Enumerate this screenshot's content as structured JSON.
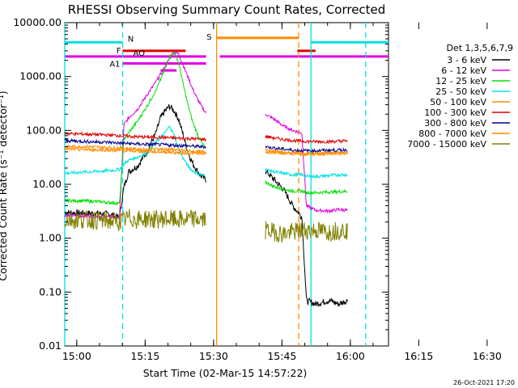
{
  "chart_data": {
    "type": "line",
    "title": "RHESSI Observing Summary Count Rates, Corrected",
    "xlabel": "Start Time (02-Mar-15 14:57:22)",
    "ylabel": "Corrected Count Rate (s⁻¹ detector⁻¹)",
    "yscale": "log",
    "ylim": [
      0.01,
      10000
    ],
    "xlim_minutes": [
      0,
      71
    ],
    "x_tick_labels": [
      "15:00",
      "15:15",
      "15:30",
      "15:45",
      "16:00",
      "16:15",
      "16:30"
    ],
    "y_tick_labels": [
      "10000.00",
      "1000.00",
      "100.00",
      "10.00",
      "1.00",
      "0.10",
      "0.01"
    ],
    "legend_title": "Det 1,3,5,6,7,9",
    "legend_position": "right",
    "timestamp": "26-Oct-2021 17:20",
    "series": [
      {
        "name": "3 - 6 keV",
        "color": "#000000",
        "seg1": [
          [
            0,
            3.0
          ],
          [
            5,
            2.9
          ],
          [
            10,
            2.8
          ],
          [
            12,
            2.4
          ],
          [
            13,
            9
          ],
          [
            14,
            17
          ],
          [
            16,
            22
          ],
          [
            18,
            40
          ],
          [
            20,
            90
          ],
          [
            21,
            170
          ],
          [
            22,
            230
          ],
          [
            23,
            280
          ],
          [
            24,
            230
          ],
          [
            25,
            160
          ],
          [
            26,
            80
          ],
          [
            27,
            40
          ],
          [
            28,
            25
          ],
          [
            29,
            18
          ],
          [
            30,
            14
          ],
          [
            31,
            12
          ]
        ],
        "seg2": [
          [
            44,
            18
          ],
          [
            46,
            12
          ],
          [
            48,
            8
          ],
          [
            50,
            4
          ],
          [
            52,
            2.5
          ],
          [
            53,
            0.07
          ],
          [
            55,
            0.06
          ],
          [
            58,
            0.07
          ],
          [
            60,
            0.06
          ],
          [
            62,
            0.07
          ]
        ]
      },
      {
        "name": "6 - 12 keV",
        "color": "#e000e0",
        "seg1": [
          [
            0,
            2.6
          ],
          [
            5,
            2.6
          ],
          [
            10,
            2.5
          ],
          [
            12,
            2.4
          ],
          [
            13,
            130
          ],
          [
            14,
            170
          ],
          [
            16,
            250
          ],
          [
            18,
            450
          ],
          [
            20,
            800
          ],
          [
            22,
            1500
          ],
          [
            23,
            2200
          ],
          [
            24,
            2900
          ],
          [
            25,
            2600
          ],
          [
            26,
            1600
          ],
          [
            27,
            1000
          ],
          [
            28,
            600
          ],
          [
            29,
            400
          ],
          [
            30,
            280
          ],
          [
            31,
            210
          ]
        ],
        "seg2": [
          [
            44,
            200
          ],
          [
            46,
            160
          ],
          [
            48,
            120
          ],
          [
            50,
            100
          ],
          [
            52,
            90
          ],
          [
            53,
            4
          ],
          [
            55,
            3.3
          ],
          [
            58,
            3.2
          ],
          [
            60,
            3.4
          ],
          [
            62,
            3.3
          ]
        ]
      },
      {
        "name": "12 - 25 keV",
        "color": "#00e000",
        "seg1": [
          [
            0,
            5.0
          ],
          [
            5,
            4.9
          ],
          [
            10,
            4.6
          ],
          [
            12,
            4.4
          ],
          [
            13,
            70
          ],
          [
            14,
            90
          ],
          [
            16,
            150
          ],
          [
            18,
            280
          ],
          [
            20,
            550
          ],
          [
            22,
            1400
          ],
          [
            23,
            2400
          ],
          [
            24,
            2800
          ],
          [
            25,
            1800
          ],
          [
            26,
            700
          ],
          [
            27,
            300
          ],
          [
            28,
            150
          ],
          [
            29,
            90
          ],
          [
            30,
            60
          ],
          [
            31,
            45
          ]
        ],
        "seg2": [
          [
            44,
            11
          ],
          [
            46,
            9
          ],
          [
            48,
            8
          ],
          [
            50,
            7.5
          ],
          [
            52,
            7.5
          ],
          [
            53,
            7
          ],
          [
            55,
            7
          ],
          [
            58,
            7.2
          ],
          [
            60,
            7.3
          ],
          [
            62,
            7.4
          ]
        ]
      },
      {
        "name": "25 - 50 keV",
        "color": "#00e0e0",
        "seg1": [
          [
            0,
            16
          ],
          [
            5,
            17
          ],
          [
            10,
            18
          ],
          [
            12,
            19
          ],
          [
            13,
            24
          ],
          [
            14,
            28
          ],
          [
            16,
            32
          ],
          [
            18,
            38
          ],
          [
            20,
            60
          ],
          [
            22,
            90
          ],
          [
            23,
            120
          ],
          [
            24,
            80
          ],
          [
            25,
            45
          ],
          [
            26,
            30
          ],
          [
            27,
            22
          ],
          [
            28,
            18
          ],
          [
            29,
            16
          ],
          [
            30,
            15
          ],
          [
            31,
            14
          ]
        ],
        "seg2": [
          [
            44,
            19
          ],
          [
            46,
            17
          ],
          [
            48,
            16
          ],
          [
            50,
            15
          ],
          [
            52,
            15
          ],
          [
            53,
            14
          ],
          [
            55,
            14
          ],
          [
            58,
            14.5
          ],
          [
            60,
            15
          ],
          [
            62,
            15
          ]
        ]
      },
      {
        "name": "50 - 100 keV",
        "color": "#ff8c00",
        "seg1": [
          [
            0,
            50
          ],
          [
            5,
            50
          ],
          [
            10,
            48
          ],
          [
            12,
            47
          ],
          [
            14,
            46
          ],
          [
            16,
            45
          ],
          [
            18,
            45
          ],
          [
            20,
            45
          ],
          [
            22,
            45
          ],
          [
            24,
            44
          ],
          [
            26,
            42
          ],
          [
            28,
            41
          ],
          [
            30,
            40
          ],
          [
            31,
            40
          ]
        ],
        "seg2": [
          [
            44,
            40
          ],
          [
            46,
            39
          ],
          [
            48,
            38
          ],
          [
            50,
            37
          ],
          [
            52,
            36
          ],
          [
            55,
            36
          ],
          [
            58,
            37
          ],
          [
            60,
            37
          ],
          [
            62,
            38
          ]
        ]
      },
      {
        "name": "100 - 300 keV",
        "color": "#e00000",
        "seg1": [
          [
            0,
            88
          ],
          [
            5,
            85
          ],
          [
            10,
            82
          ],
          [
            12,
            80
          ],
          [
            14,
            78
          ],
          [
            16,
            76
          ],
          [
            18,
            75
          ],
          [
            20,
            75
          ],
          [
            22,
            74
          ],
          [
            24,
            72
          ],
          [
            26,
            71
          ],
          [
            28,
            70
          ],
          [
            30,
            69
          ],
          [
            31,
            68
          ]
        ],
        "seg2": [
          [
            44,
            78
          ],
          [
            46,
            72
          ],
          [
            48,
            68
          ],
          [
            50,
            65
          ],
          [
            52,
            63
          ],
          [
            55,
            62
          ],
          [
            58,
            62
          ],
          [
            60,
            63
          ],
          [
            62,
            64
          ]
        ]
      },
      {
        "name": "300 - 800 keV",
        "color": "#000090",
        "seg1": [
          [
            0,
            65
          ],
          [
            5,
            62
          ],
          [
            10,
            60
          ],
          [
            12,
            58
          ],
          [
            14,
            57
          ],
          [
            16,
            56
          ],
          [
            18,
            55
          ],
          [
            20,
            55
          ],
          [
            22,
            54
          ],
          [
            24,
            53
          ],
          [
            26,
            52
          ],
          [
            28,
            51
          ],
          [
            30,
            50
          ],
          [
            31,
            50
          ]
        ],
        "seg2": [
          [
            44,
            50
          ],
          [
            46,
            47
          ],
          [
            48,
            45
          ],
          [
            50,
            43
          ],
          [
            52,
            42
          ],
          [
            55,
            42
          ],
          [
            58,
            43
          ],
          [
            60,
            43
          ],
          [
            62,
            44
          ]
        ]
      },
      {
        "name": "800 - 7000 keV",
        "color": "#ff8c00",
        "seg1": [
          [
            0,
            45
          ],
          [
            5,
            44
          ],
          [
            10,
            43
          ],
          [
            12,
            42
          ],
          [
            14,
            42
          ],
          [
            16,
            41
          ],
          [
            18,
            41
          ],
          [
            20,
            40
          ],
          [
            22,
            40
          ],
          [
            24,
            39
          ],
          [
            26,
            38
          ],
          [
            28,
            38
          ],
          [
            30,
            37
          ],
          [
            31,
            37
          ]
        ],
        "seg2": [
          [
            44,
            44
          ],
          [
            46,
            41
          ],
          [
            48,
            39
          ],
          [
            50,
            38
          ],
          [
            52,
            37
          ],
          [
            55,
            37
          ],
          [
            58,
            38
          ],
          [
            60,
            38
          ],
          [
            62,
            39
          ]
        ]
      },
      {
        "name": "7000 - 15000 keV",
        "color": "#808000",
        "seg1": [
          [
            0,
            2.2
          ],
          [
            5,
            2.2
          ],
          [
            10,
            2.1
          ],
          [
            12,
            2.0
          ],
          [
            14,
            2.4
          ],
          [
            16,
            2.2
          ],
          [
            18,
            2.3
          ],
          [
            20,
            2.2
          ],
          [
            22,
            2.3
          ],
          [
            24,
            2.2
          ],
          [
            26,
            2.2
          ],
          [
            28,
            2.3
          ],
          [
            30,
            2.2
          ],
          [
            31,
            2.2
          ]
        ],
        "seg2": [
          [
            44,
            1.4
          ],
          [
            46,
            1.3
          ],
          [
            48,
            1.2
          ],
          [
            50,
            1.3
          ],
          [
            52,
            1.4
          ],
          [
            55,
            1.4
          ],
          [
            58,
            1.3
          ],
          [
            60,
            1.4
          ],
          [
            62,
            1.4
          ]
        ]
      }
    ],
    "flag_bars": [
      {
        "label": "N",
        "color": "#00e0e0",
        "y": 4300,
        "segments": [
          [
            0,
            12.7
          ],
          [
            54,
            71
          ]
        ]
      },
      {
        "label": "F",
        "color": "#e00000",
        "y": 3000,
        "segments": [
          [
            12.7,
            26.5
          ],
          [
            51,
            55
          ]
        ]
      },
      {
        "label": "AO",
        "color": "#e000e0",
        "y": 2350,
        "segments": [
          [
            0,
            31
          ],
          [
            34,
            71
          ]
        ]
      },
      {
        "label": "A1",
        "color": "#e000e0",
        "y": 1750,
        "segments": [
          [
            12.7,
            31
          ]
        ]
      },
      {
        "label": "",
        "color": "#e000e0",
        "y": 1300,
        "segments": [
          [
            21,
            24.5
          ]
        ]
      },
      {
        "label": "S",
        "color": "#ff8c00",
        "y": 5200,
        "segments": [
          [
            33.3,
            51.3
          ]
        ]
      }
    ],
    "vlines": [
      {
        "x": 0,
        "color": "#00e0e0",
        "style": "solid"
      },
      {
        "x": 12.7,
        "color": "#00e0e0",
        "style": "dashed"
      },
      {
        "x": 33.3,
        "color": "#ff8c00",
        "style": "solid"
      },
      {
        "x": 51.3,
        "color": "#ff8c00",
        "style": "dashed"
      },
      {
        "x": 54,
        "color": "#00e0e0",
        "style": "solid"
      },
      {
        "x": 66,
        "color": "#00e0e0",
        "style": "dashed"
      }
    ]
  }
}
